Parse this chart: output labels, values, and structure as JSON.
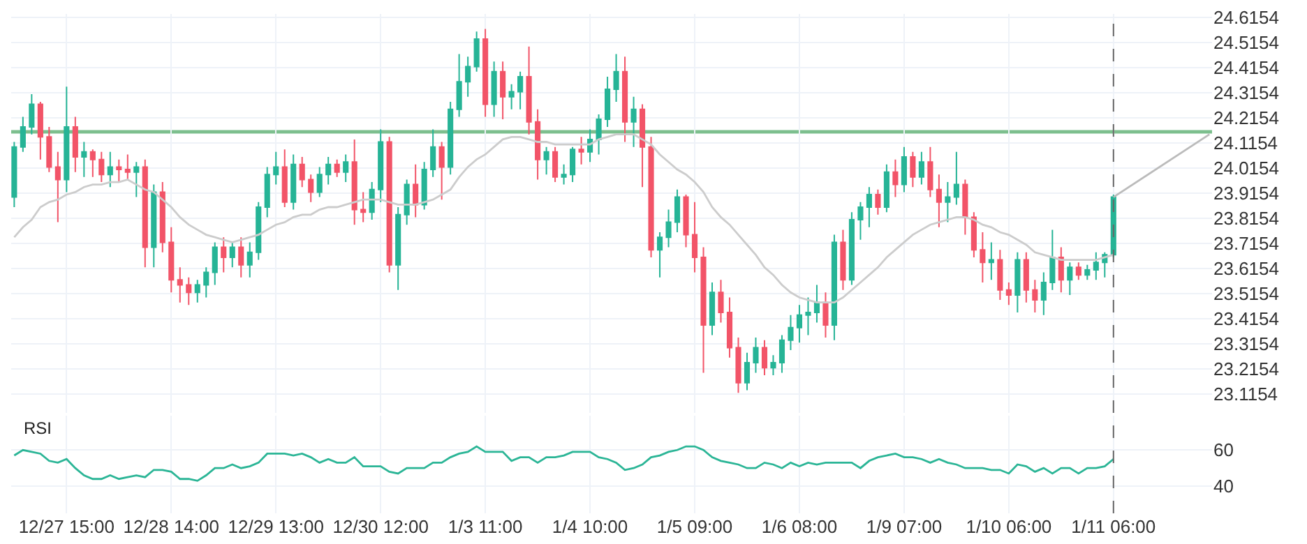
{
  "chart_data": [
    {
      "type": "candlestick",
      "categories": [
        null,
        null,
        null,
        null,
        null,
        null,
        "12/27 15:00",
        null,
        null,
        null,
        null,
        null,
        null,
        null,
        null,
        null,
        null,
        null,
        "12/28 14:00",
        null,
        null,
        null,
        null,
        null,
        null,
        null,
        null,
        null,
        null,
        null,
        "12/29 13:00",
        null,
        null,
        null,
        null,
        null,
        null,
        null,
        null,
        null,
        null,
        null,
        "12/30 12:00",
        null,
        null,
        null,
        null,
        null,
        null,
        null,
        null,
        null,
        null,
        null,
        "1/3 11:00",
        null,
        null,
        null,
        null,
        null,
        null,
        null,
        null,
        null,
        null,
        null,
        "1/4 10:00",
        null,
        null,
        null,
        null,
        null,
        null,
        null,
        null,
        null,
        null,
        null,
        "1/5 09:00",
        null,
        null,
        null,
        null,
        null,
        null,
        null,
        null,
        null,
        null,
        null,
        "1/6 08:00",
        null,
        null,
        null,
        null,
        null,
        null,
        null,
        null,
        null,
        null,
        null,
        "1/9 07:00",
        null,
        null,
        null,
        null,
        null,
        null,
        null,
        null,
        null,
        null,
        null,
        "1/10 06:00",
        null,
        null,
        null,
        null,
        null,
        null,
        null,
        null,
        null,
        null,
        null,
        "1/11 06:00",
        null,
        null,
        null,
        null,
        null,
        null,
        null,
        null,
        null,
        null,
        null
      ],
      "ohlc": [
        [
          23.9,
          24.12,
          23.86,
          24.1
        ],
        [
          24.1,
          24.22,
          24.08,
          24.18
        ],
        [
          24.18,
          24.31,
          24.15,
          24.27
        ],
        [
          24.27,
          24.28,
          24.05,
          24.14
        ],
        [
          24.14,
          24.18,
          24.0,
          24.02
        ],
        [
          24.02,
          24.08,
          23.8,
          23.97
        ],
        [
          23.97,
          24.34,
          23.92,
          24.18
        ],
        [
          24.18,
          24.22,
          24.0,
          24.06
        ],
        [
          24.06,
          24.12,
          23.98,
          24.08
        ],
        [
          24.08,
          24.09,
          23.98,
          24.05
        ],
        [
          24.05,
          24.08,
          23.96,
          23.99
        ],
        [
          23.99,
          24.08,
          23.94,
          24.02
        ],
        [
          24.02,
          24.05,
          23.96,
          24.01
        ],
        [
          24.01,
          24.07,
          23.97,
          24.0
        ],
        [
          24.0,
          24.04,
          23.9,
          24.02
        ],
        [
          24.02,
          24.05,
          23.62,
          23.7
        ],
        [
          23.7,
          23.95,
          23.62,
          23.92
        ],
        [
          23.92,
          23.96,
          23.68,
          23.72
        ],
        [
          23.72,
          23.78,
          23.52,
          23.57
        ],
        [
          23.57,
          23.62,
          23.48,
          23.55
        ],
        [
          23.55,
          23.58,
          23.47,
          23.52
        ],
        [
          23.52,
          23.57,
          23.48,
          23.55
        ],
        [
          23.55,
          23.62,
          23.5,
          23.6
        ],
        [
          23.6,
          23.72,
          23.55,
          23.7
        ],
        [
          23.7,
          23.74,
          23.6,
          23.66
        ],
        [
          23.66,
          23.72,
          23.62,
          23.7
        ],
        [
          23.7,
          23.74,
          23.58,
          23.63
        ],
        [
          23.63,
          23.72,
          23.58,
          23.68
        ],
        [
          23.68,
          23.88,
          23.65,
          23.86
        ],
        [
          23.86,
          24.02,
          23.82,
          23.99
        ],
        [
          23.99,
          24.08,
          23.95,
          24.02
        ],
        [
          24.02,
          24.09,
          23.86,
          23.88
        ],
        [
          23.88,
          24.07,
          23.85,
          24.03
        ],
        [
          24.03,
          24.06,
          23.94,
          23.97
        ],
        [
          23.97,
          23.99,
          23.88,
          23.92
        ],
        [
          23.92,
          24.02,
          23.9,
          23.99
        ],
        [
          23.99,
          24.06,
          23.95,
          24.03
        ],
        [
          24.03,
          24.05,
          23.98,
          24.0
        ],
        [
          24.0,
          24.07,
          23.96,
          24.04
        ],
        [
          24.04,
          24.13,
          23.79,
          23.85
        ],
        [
          23.85,
          23.92,
          23.8,
          23.84
        ],
        [
          23.84,
          23.96,
          23.81,
          23.93
        ],
        [
          23.93,
          24.17,
          23.88,
          24.12
        ],
        [
          24.12,
          24.14,
          23.6,
          23.63
        ],
        [
          23.63,
          23.86,
          23.53,
          23.83
        ],
        [
          23.83,
          23.97,
          23.79,
          23.95
        ],
        [
          23.95,
          24.03,
          23.82,
          23.87
        ],
        [
          23.87,
          24.04,
          23.85,
          24.01
        ],
        [
          24.01,
          24.17,
          23.98,
          24.1
        ],
        [
          24.1,
          24.12,
          23.89,
          24.02
        ],
        [
          24.02,
          24.28,
          23.99,
          24.25
        ],
        [
          24.25,
          24.47,
          24.22,
          24.36
        ],
        [
          24.36,
          24.46,
          24.3,
          24.42
        ],
        [
          24.42,
          24.56,
          24.4,
          24.53
        ],
        [
          24.53,
          24.57,
          24.22,
          24.27
        ],
        [
          24.27,
          24.44,
          24.22,
          24.4
        ],
        [
          24.4,
          24.44,
          24.21,
          24.3
        ],
        [
          24.3,
          24.35,
          24.25,
          24.32
        ],
        [
          24.32,
          24.4,
          24.25,
          24.38
        ],
        [
          24.38,
          24.5,
          24.15,
          24.2
        ],
        [
          24.2,
          24.25,
          23.97,
          24.05
        ],
        [
          24.05,
          24.1,
          23.99,
          24.08
        ],
        [
          24.08,
          24.1,
          23.96,
          23.98
        ],
        [
          23.98,
          24.03,
          23.95,
          23.99
        ],
        [
          23.99,
          24.1,
          23.96,
          24.09
        ],
        [
          24.09,
          24.14,
          24.03,
          24.08
        ],
        [
          24.08,
          24.17,
          24.04,
          24.13
        ],
        [
          24.13,
          24.23,
          24.07,
          24.21
        ],
        [
          24.21,
          24.38,
          24.18,
          24.33
        ],
        [
          24.33,
          24.47,
          24.28,
          24.4
        ],
        [
          24.4,
          24.46,
          24.12,
          24.2
        ],
        [
          24.2,
          24.3,
          24.1,
          24.25
        ],
        [
          24.25,
          24.27,
          23.94,
          24.1
        ],
        [
          24.1,
          24.14,
          23.66,
          23.69
        ],
        [
          23.69,
          23.76,
          23.58,
          23.74
        ],
        [
          23.74,
          23.85,
          23.7,
          23.8
        ],
        [
          23.8,
          23.93,
          23.76,
          23.9
        ],
        [
          23.9,
          23.91,
          23.7,
          23.75
        ],
        [
          23.75,
          23.88,
          23.6,
          23.66
        ],
        [
          23.66,
          23.7,
          23.2,
          23.39
        ],
        [
          23.39,
          23.56,
          23.35,
          23.52
        ],
        [
          23.52,
          23.57,
          23.4,
          23.44
        ],
        [
          23.44,
          23.5,
          23.26,
          23.3
        ],
        [
          23.3,
          23.34,
          23.12,
          23.16
        ],
        [
          23.16,
          23.28,
          23.13,
          23.24
        ],
        [
          23.24,
          23.34,
          23.2,
          23.3
        ],
        [
          23.3,
          23.33,
          23.19,
          23.22
        ],
        [
          23.22,
          23.27,
          23.19,
          23.24
        ],
        [
          23.24,
          23.35,
          23.2,
          23.33
        ],
        [
          23.33,
          23.43,
          23.29,
          23.38
        ],
        [
          23.38,
          23.47,
          23.32,
          23.43
        ],
        [
          23.43,
          23.5,
          23.35,
          23.44
        ],
        [
          23.44,
          23.55,
          23.4,
          23.48
        ],
        [
          23.48,
          23.52,
          23.34,
          23.39
        ],
        [
          23.39,
          23.75,
          23.33,
          23.72
        ],
        [
          23.72,
          23.77,
          23.53,
          23.57
        ],
        [
          23.57,
          23.84,
          23.55,
          23.81
        ],
        [
          23.81,
          23.88,
          23.73,
          23.86
        ],
        [
          23.86,
          23.94,
          23.78,
          23.91
        ],
        [
          23.91,
          23.93,
          23.83,
          23.86
        ],
        [
          23.86,
          24.03,
          23.84,
          24.0
        ],
        [
          24.0,
          24.05,
          23.9,
          23.95
        ],
        [
          23.95,
          24.1,
          23.92,
          24.06
        ],
        [
          24.06,
          24.08,
          23.94,
          23.98
        ],
        [
          23.98,
          24.08,
          23.95,
          24.04
        ],
        [
          24.04,
          24.1,
          23.9,
          23.93
        ],
        [
          23.93,
          23.99,
          23.78,
          23.88
        ],
        [
          23.88,
          23.96,
          23.8,
          23.9
        ],
        [
          23.9,
          24.08,
          23.87,
          23.95
        ],
        [
          23.95,
          23.97,
          23.75,
          23.82
        ],
        [
          23.82,
          23.84,
          23.66,
          23.69
        ],
        [
          23.69,
          23.76,
          23.56,
          23.64
        ],
        [
          23.64,
          23.72,
          23.57,
          23.65
        ],
        [
          23.65,
          23.69,
          23.49,
          23.53
        ],
        [
          23.53,
          23.56,
          23.47,
          23.51
        ],
        [
          23.51,
          23.68,
          23.44,
          23.65
        ],
        [
          23.65,
          23.68,
          23.48,
          23.53
        ],
        [
          23.53,
          23.57,
          23.44,
          23.49
        ],
        [
          23.49,
          23.6,
          23.43,
          23.56
        ],
        [
          23.56,
          23.77,
          23.53,
          23.66
        ],
        [
          23.66,
          23.7,
          23.52,
          23.57
        ],
        [
          23.57,
          23.64,
          23.51,
          23.62
        ],
        [
          23.62,
          23.64,
          23.57,
          23.59
        ],
        [
          23.59,
          23.63,
          23.57,
          23.61
        ],
        [
          23.61,
          23.68,
          23.57,
          23.64
        ],
        [
          23.64,
          23.68,
          23.58,
          23.67
        ],
        [
          23.67,
          23.91,
          23.66,
          23.9
        ],
        null,
        null,
        null,
        null,
        null,
        null,
        null,
        null,
        null,
        null,
        null
      ],
      "series": [
        {
          "type": "line",
          "color": "#cccccc",
          "values": [
            23.74,
            23.78,
            23.81,
            23.86,
            23.88,
            23.89,
            23.91,
            23.92,
            23.94,
            23.95,
            23.95,
            23.96,
            23.96,
            23.97,
            23.95,
            23.93,
            23.92,
            23.89,
            23.86,
            23.82,
            23.79,
            23.77,
            23.75,
            23.74,
            23.73,
            23.72,
            23.73,
            23.74,
            23.75,
            23.77,
            23.79,
            23.8,
            23.82,
            23.83,
            23.83,
            23.85,
            23.86,
            23.86,
            23.87,
            23.88,
            23.89,
            23.89,
            23.89,
            23.88,
            23.87,
            23.87,
            23.87,
            23.88,
            23.89,
            23.91,
            23.93,
            23.98,
            24.02,
            24.05,
            24.07,
            24.1,
            24.13,
            24.14,
            24.14,
            24.13,
            24.12,
            24.12,
            24.11,
            24.11,
            24.11,
            24.11,
            24.11,
            24.13,
            24.14,
            24.15,
            24.15,
            24.15,
            24.13,
            24.11,
            24.07,
            24.04,
            24.01,
            23.99,
            23.96,
            23.92,
            23.86,
            23.82,
            23.79,
            23.75,
            23.71,
            23.67,
            23.62,
            23.59,
            23.55,
            23.52,
            23.5,
            23.49,
            23.48,
            23.48,
            23.48,
            23.5,
            23.53,
            23.56,
            23.59,
            23.62,
            23.66,
            23.69,
            23.72,
            23.75,
            23.77,
            23.79,
            23.8,
            23.81,
            23.82,
            23.82,
            23.81,
            23.79,
            23.78,
            23.76,
            23.75,
            23.73,
            23.71,
            23.68,
            23.67,
            23.66,
            23.65,
            23.65,
            23.65,
            23.65,
            23.65,
            23.66,
            23.67,
            null,
            null,
            null,
            null,
            null,
            null,
            null,
            null,
            null,
            null,
            null
          ]
        },
        {
          "type": "line",
          "color": "#bbbbbb",
          "values": [
            null,
            null,
            null,
            null,
            null,
            null,
            null,
            null,
            null,
            null,
            null,
            null,
            null,
            null,
            null,
            null,
            null,
            null,
            null,
            null,
            null,
            null,
            null,
            null,
            null,
            null,
            null,
            null,
            null,
            null,
            null,
            null,
            null,
            null,
            null,
            null,
            null,
            null,
            null,
            null,
            null,
            null,
            null,
            null,
            null,
            null,
            null,
            null,
            null,
            null,
            null,
            null,
            null,
            null,
            null,
            null,
            null,
            null,
            null,
            null,
            null,
            null,
            null,
            null,
            null,
            null,
            null,
            null,
            null,
            null,
            null,
            null,
            null,
            null,
            null,
            null,
            null,
            null,
            null,
            null,
            null,
            null,
            null,
            null,
            null,
            null,
            null,
            null,
            null,
            null,
            null,
            null,
            null,
            null,
            null,
            null,
            null,
            null,
            null,
            null,
            null,
            null,
            null,
            null,
            null,
            null,
            null,
            null,
            null,
            null,
            null,
            null,
            null,
            null,
            null,
            null,
            null,
            null,
            null,
            null,
            null,
            null,
            null,
            null,
            null,
            null,
            23.9,
            null,
            null,
            null,
            null,
            null,
            null,
            null,
            null,
            null,
            null,
            24.15
          ]
        }
      ],
      "ylim": [
        23.04,
        24.63
      ],
      "yticks": [
        23.1154,
        23.2154,
        23.3154,
        23.4154,
        23.5154,
        23.6154,
        23.7154,
        23.8154,
        23.9154,
        24.0154,
        24.1154,
        24.2154,
        24.3154,
        24.4154,
        24.5154,
        24.6154
      ],
      "grid": true,
      "tick_labels": "y",
      "ref_lines": [
        {
          "axis": "y",
          "value": 24.16,
          "color": "#7dbf8e",
          "line_style": "solid"
        },
        {
          "axis": "x",
          "value": "1/11 06:00",
          "color": "#666666",
          "line_style": "dashed"
        }
      ]
    },
    {
      "type": "line",
      "title": "RSI",
      "categories": [
        null,
        null,
        null,
        null,
        null,
        null,
        "12/27 15:00",
        null,
        null,
        null,
        null,
        null,
        null,
        null,
        null,
        null,
        null,
        null,
        "12/28 14:00",
        null,
        null,
        null,
        null,
        null,
        null,
        null,
        null,
        null,
        null,
        null,
        "12/29 13:00",
        null,
        null,
        null,
        null,
        null,
        null,
        null,
        null,
        null,
        null,
        null,
        "12/30 12:00",
        null,
        null,
        null,
        null,
        null,
        null,
        null,
        null,
        null,
        null,
        null,
        "1/3 11:00",
        null,
        null,
        null,
        null,
        null,
        null,
        null,
        null,
        null,
        null,
        null,
        "1/4 10:00",
        null,
        null,
        null,
        null,
        null,
        null,
        null,
        null,
        null,
        null,
        null,
        "1/5 09:00",
        null,
        null,
        null,
        null,
        null,
        null,
        null,
        null,
        null,
        null,
        null,
        "1/6 08:00",
        null,
        null,
        null,
        null,
        null,
        null,
        null,
        null,
        null,
        null,
        null,
        "1/9 07:00",
        null,
        null,
        null,
        null,
        null,
        null,
        null,
        null,
        null,
        null,
        null,
        "1/10 06:00",
        null,
        null,
        null,
        null,
        null,
        null,
        null,
        null,
        null,
        null,
        null,
        "1/11 06:00",
        null,
        null,
        null,
        null,
        null,
        null,
        null,
        null,
        null,
        null,
        null
      ],
      "series": [
        {
          "color": "#2bb596",
          "values": [
            57,
            60,
            59,
            58,
            54,
            53,
            55,
            50,
            46,
            44,
            44,
            46,
            44,
            45,
            46,
            45,
            49,
            49,
            48,
            44,
            44,
            43,
            46,
            50,
            50,
            52,
            50,
            51,
            53,
            58,
            58,
            58,
            57,
            58,
            56,
            53,
            55,
            53,
            53,
            56,
            51,
            51,
            51,
            48,
            47,
            50,
            50,
            50,
            53,
            53,
            56,
            58,
            59,
            62,
            59,
            59,
            59,
            54,
            56,
            56,
            53,
            56,
            56,
            57,
            59,
            59,
            59,
            56,
            55,
            53,
            49,
            50,
            52,
            56,
            57,
            59,
            60,
            62,
            62,
            60,
            56,
            54,
            53,
            52,
            50,
            50,
            53,
            52,
            50,
            53,
            51,
            53,
            52,
            53,
            53,
            53,
            53,
            50,
            54,
            56,
            57,
            58,
            56,
            56,
            55,
            53,
            55,
            53,
            52,
            50,
            50,
            50,
            49,
            49,
            47,
            52,
            51,
            48,
            50,
            47,
            50,
            50,
            47,
            50,
            50,
            51,
            55,
            null,
            null,
            null,
            null,
            null,
            null,
            null,
            null,
            null,
            null,
            null
          ]
        }
      ],
      "ylim": [
        25,
        79
      ],
      "yticks": [
        40,
        60
      ],
      "grid": true,
      "ref_lines": [
        {
          "axis": "x",
          "value": "1/11 06:00",
          "color": "#666666",
          "line_style": "dashed"
        }
      ]
    }
  ]
}
